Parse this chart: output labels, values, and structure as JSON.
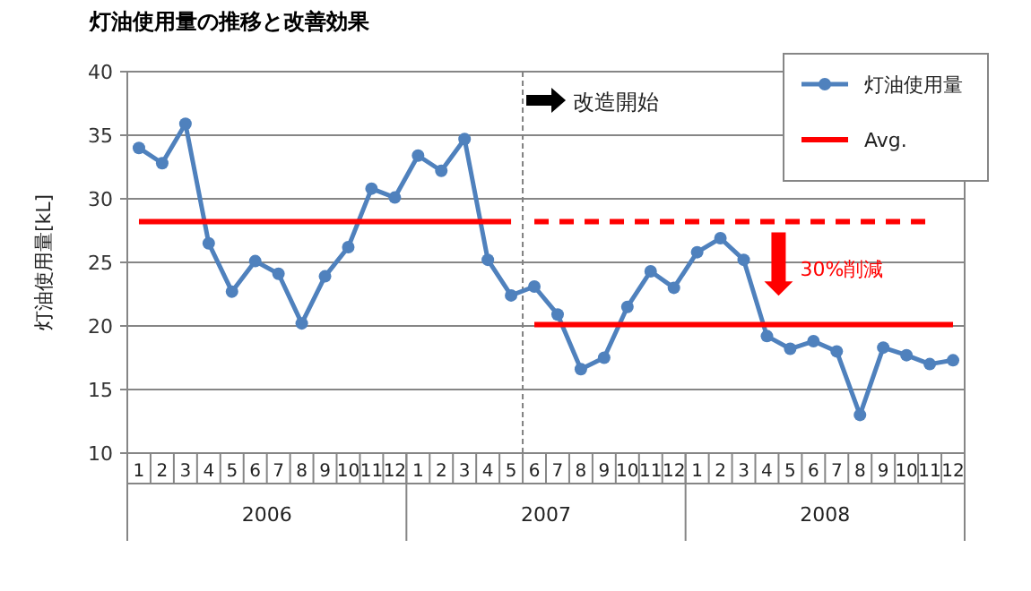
{
  "chart_data": {
    "type": "line",
    "title": "灯油使用量の推移と改善効果",
    "ylabel": "灯油使用量[kL]",
    "x": [
      "2006-01",
      "2006-02",
      "2006-03",
      "2006-04",
      "2006-05",
      "2006-06",
      "2006-07",
      "2006-08",
      "2006-09",
      "2006-10",
      "2006-11",
      "2006-12",
      "2007-01",
      "2007-02",
      "2007-03",
      "2007-04",
      "2007-05",
      "2007-06",
      "2007-07",
      "2007-08",
      "2007-09",
      "2007-10",
      "2007-11",
      "2007-12",
      "2008-01",
      "2008-02",
      "2008-03",
      "2008-04",
      "2008-05",
      "2008-06",
      "2008-07",
      "2008-08",
      "2008-09",
      "2008-10",
      "2008-11",
      "2008-12"
    ],
    "xlim": [
      "2005-12-16",
      "2008-12-16"
    ],
    "xticks": [
      {
        "value": "2006-01",
        "label": "1"
      },
      {
        "value": "2006-02",
        "label": "2"
      },
      {
        "value": "2006-03",
        "label": "3"
      },
      {
        "value": "2006-04",
        "label": "4"
      },
      {
        "value": "2006-05",
        "label": "5"
      },
      {
        "value": "2006-06",
        "label": "6"
      },
      {
        "value": "2006-07",
        "label": "7"
      },
      {
        "value": "2006-08",
        "label": "8"
      },
      {
        "value": "2006-09",
        "label": "9"
      },
      {
        "value": "2006-10",
        "label": "10"
      },
      {
        "value": "2006-11",
        "label": "11"
      },
      {
        "value": "2006-12",
        "label": "12"
      },
      {
        "value": "2007-01",
        "label": "1"
      },
      {
        "value": "2007-02",
        "label": "2"
      },
      {
        "value": "2007-03",
        "label": "3"
      },
      {
        "value": "2007-04",
        "label": "4"
      },
      {
        "value": "2007-05",
        "label": "5"
      },
      {
        "value": "2007-06",
        "label": "6"
      },
      {
        "value": "2007-07",
        "label": "7"
      },
      {
        "value": "2007-08",
        "label": "8"
      },
      {
        "value": "2007-09",
        "label": "9"
      },
      {
        "value": "2007-10",
        "label": "10"
      },
      {
        "value": "2007-11",
        "label": "11"
      },
      {
        "value": "2007-12",
        "label": "12"
      },
      {
        "value": "2008-01",
        "label": "1"
      },
      {
        "value": "2008-02",
        "label": "2"
      },
      {
        "value": "2008-03",
        "label": "3"
      },
      {
        "value": "2008-04",
        "label": "4"
      },
      {
        "value": "2008-05",
        "label": "5"
      },
      {
        "value": "2008-06",
        "label": "6"
      },
      {
        "value": "2008-07",
        "label": "7"
      },
      {
        "value": "2008-08",
        "label": "8"
      },
      {
        "value": "2008-09",
        "label": "9"
      },
      {
        "value": "2008-10",
        "label": "10"
      },
      {
        "value": "2008-11",
        "label": "11"
      },
      {
        "value": "2008-12",
        "label": "12"
      }
    ],
    "ylim": [
      10,
      40
    ],
    "yticks": [
      10,
      15,
      20,
      25,
      30,
      35,
      40
    ],
    "grid": "y",
    "legend": "top right",
    "series": [
      {
        "name": "灯油使用量",
        "color": "#4f81bd",
        "marker": "circle",
        "values": [
          34,
          32.8,
          35.9,
          26.5,
          22.7,
          25.1,
          24.1,
          20.2,
          23.9,
          26.2,
          30.8,
          30.1,
          33.4,
          32.2,
          34.7,
          25.2,
          22.4,
          23.1,
          20.9,
          16.6,
          17.5,
          21.5,
          24.3,
          23.0,
          25.8,
          26.9,
          25.2,
          19.2,
          18.2,
          18.8,
          18.0,
          13.0,
          18.3,
          17.7,
          17.0,
          17.3
        ]
      },
      {
        "name": "Avg.",
        "color": "#ff0000",
        "marker": "none",
        "line_style": "solid",
        "x": [
          "2006-01",
          "2007-05"
        ],
        "values": [
          28.2,
          28.2
        ]
      },
      {
        "color": "#ff0000",
        "marker": "none",
        "line_style": "dashed",
        "x": [
          "2007-06",
          "2008-11"
        ],
        "values": [
          28.2,
          28.2
        ]
      },
      {
        "color": "#ff0000",
        "marker": "none",
        "line_style": "solid",
        "x": [
          "2007-06",
          "2008-12"
        ],
        "values": [
          20.1,
          20.1
        ]
      }
    ],
    "ref_lines": [
      {
        "axis": "x",
        "value": "2007-05-16",
        "label": "改造開始",
        "color": "#808080",
        "line_style": "dashed"
      }
    ],
    "annotations": [
      {
        "text": "30%削減",
        "x": "2008-04-16",
        "y": 28.2
      },
      "2006",
      "2007",
      "2008"
    ]
  }
}
